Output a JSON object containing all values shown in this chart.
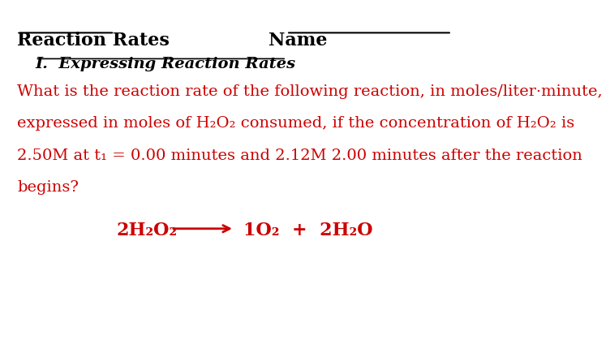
{
  "background_color": "#ffffff",
  "title_left": "Reaction Rates",
  "title_right": "Name",
  "section_heading": "I.  Expressing Reaction Rates",
  "body_color": "#cc0000",
  "header_color": "#000000",
  "body_lines": [
    "What is the reaction rate of the following reaction, in moles/liter·minute,",
    "expressed in moles of H₂O₂ consumed, if the concentration of H₂O₂ is",
    "2.50M at t₁ = 0.00 minutes and 2.12M 2.00 minutes after the reaction",
    "begins?"
  ],
  "equation_left": "2H₂O₂",
  "equation_right": "1O₂  +  2H₂O",
  "fontsize_header": 16,
  "fontsize_section": 14,
  "fontsize_body": 14,
  "fontsize_equation": 16
}
